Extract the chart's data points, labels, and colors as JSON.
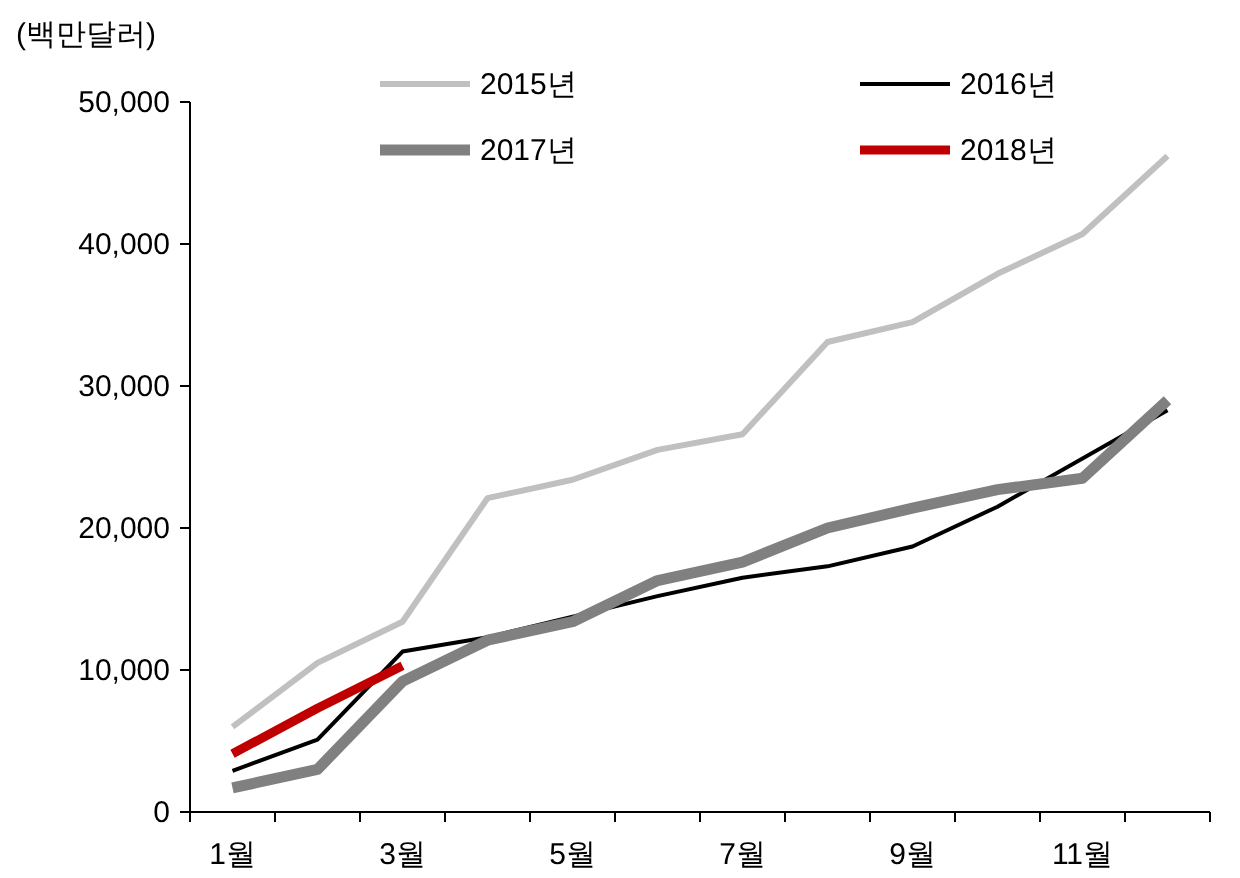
{
  "chart_data": {
    "type": "line",
    "ylabel": "(백만달러)",
    "categories": [
      "1월",
      null,
      "3월",
      null,
      "5월",
      null,
      "7월",
      null,
      "9월",
      null,
      "11월",
      null
    ],
    "series": [
      {
        "name": "2015년",
        "color": "#c0c0c0",
        "values": [
          6000,
          10500,
          13400,
          22100,
          23400,
          25500,
          26600,
          33100,
          34500,
          37900,
          40700,
          46200
        ]
      },
      {
        "name": "2016년",
        "color": "#000000",
        "values": [
          2900,
          5100,
          11300,
          12300,
          null,
          15200,
          16500,
          17300,
          18700,
          21500,
          null,
          28300
        ]
      },
      {
        "name": "2017년",
        "color": "#808080",
        "values": [
          1700,
          3000,
          9200,
          12100,
          13400,
          16300,
          17600,
          20000,
          21400,
          22700,
          23500,
          29000
        ]
      },
      {
        "name": "2018년",
        "color": "#c00000",
        "values": [
          4100,
          7300,
          10300,
          null,
          null,
          null,
          null,
          null,
          null,
          null,
          null,
          null
        ]
      }
    ],
    "ylim": [
      0,
      50000
    ],
    "yticks": [
      {
        "value": 0,
        "label": "0"
      },
      {
        "value": 10000,
        "label": "10,000"
      },
      {
        "value": 20000,
        "label": "20,000"
      },
      {
        "value": 30000,
        "label": "30,000"
      },
      {
        "value": 40000,
        "label": "40,000"
      },
      {
        "value": 50000,
        "label": "50,000"
      }
    ],
    "grid": false,
    "legend": "top",
    "marker": "none",
    "line_style": "solid"
  }
}
